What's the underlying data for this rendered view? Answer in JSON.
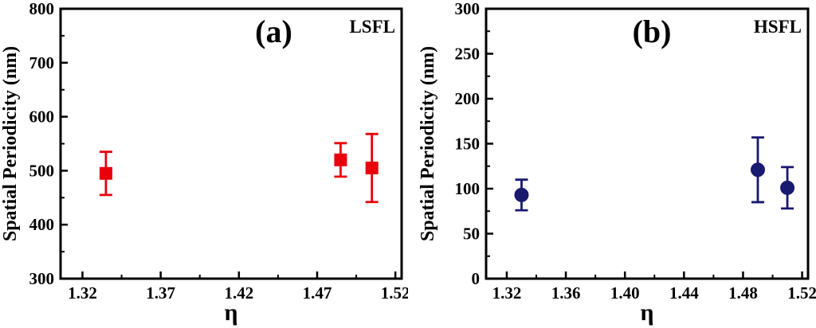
{
  "figure": {
    "background": "#ffffff"
  },
  "chart_data": [
    {
      "type": "scatter",
      "panel_label": "(a)",
      "corner_label": "LSFL",
      "xlabel": "η",
      "ylabel": "Spatial Periodicity (nm)",
      "xlim": [
        1.306,
        1.524
      ],
      "ylim": [
        300,
        800
      ],
      "xticks": [
        "1.32",
        "1.37",
        "1.42",
        "1.47",
        "1.52"
      ],
      "yticks": [
        "300",
        "400",
        "500",
        "600",
        "700",
        "800"
      ],
      "x_minor_step": 0.025,
      "y_minor_step": 50,
      "grid": false,
      "legend": false,
      "marker": "square",
      "color": "#e8000d",
      "points": [
        {
          "x": 1.335,
          "y": 495,
          "yerr": 40
        },
        {
          "x": 1.485,
          "y": 520,
          "yerr": 31
        },
        {
          "x": 1.505,
          "y": 505,
          "yerr": 63
        }
      ]
    },
    {
      "type": "scatter",
      "panel_label": "(b)",
      "corner_label": "HSFL",
      "xlabel": "η",
      "ylabel": "Spatial Periodicity (nm)",
      "xlim": [
        1.306,
        1.524
      ],
      "ylim": [
        0,
        300
      ],
      "xticks": [
        "1.32",
        "1.36",
        "1.40",
        "1.44",
        "1.48",
        "1.52"
      ],
      "yticks": [
        "0",
        "50",
        "100",
        "150",
        "200",
        "250",
        "300"
      ],
      "x_minor_step": 0.02,
      "y_minor_step": 25,
      "grid": false,
      "legend": false,
      "marker": "circle",
      "color": "#191970",
      "points": [
        {
          "x": 1.33,
          "y": 93,
          "yerr": 17
        },
        {
          "x": 1.49,
          "y": 121,
          "yerr": 36
        },
        {
          "x": 1.51,
          "y": 101,
          "yerr": 23
        }
      ]
    }
  ]
}
